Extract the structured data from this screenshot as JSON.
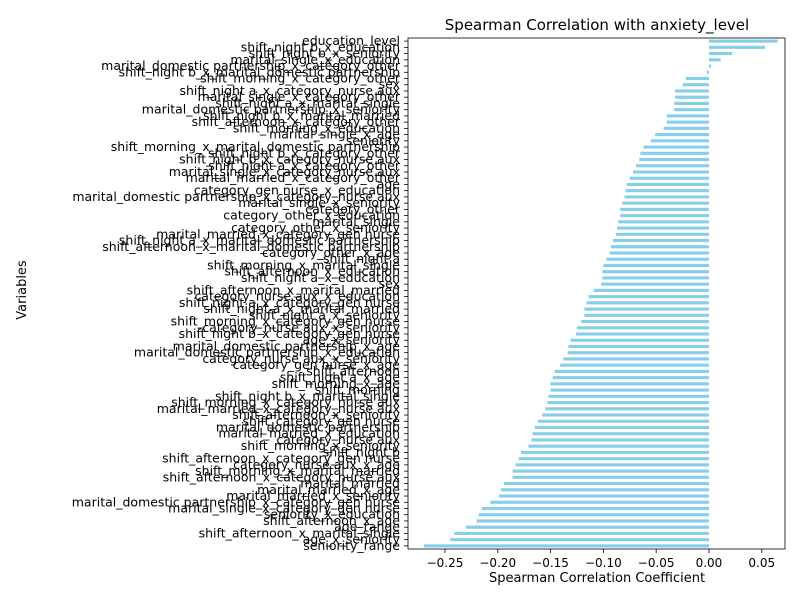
{
  "chart_data": {
    "type": "bar",
    "orientation": "horizontal",
    "title": "Spearman Correlation with anxiety_level",
    "xlabel": "Spearman Correlation Coefficient",
    "ylabel": "Variables",
    "xlim": [
      -0.285,
      0.072
    ],
    "xticks": [
      -0.25,
      -0.2,
      -0.15,
      -0.1,
      -0.05,
      0.0,
      0.05
    ],
    "xtick_labels": [
      "−0.25",
      "−0.20",
      "−0.15",
      "−0.10",
      "−0.05",
      "0.00",
      "0.05"
    ],
    "bar_color": "#87ceeb",
    "grid": false,
    "categories": [
      "education_level",
      "shift_night b_x_education",
      "shift_night b_x_seniority",
      "marital_single_x_education",
      "marital_domestic partnership_x_category_other",
      "shift_night b_x_marital_domestic partnership",
      "shift_morning_x_category_other",
      "sex",
      "shift_night a_x_category_nurse aux",
      "marital_single_x_category_other",
      "shift_night a_x_marital_single",
      "marital_domestic partnership_x_seniority",
      "shift_night b_x_marital_married",
      "shift_afternoon_x_category_other",
      "shift_morning_x_education",
      "marital_single_x_age",
      "seniority",
      "shift_morning_x_marital_domestic partnership",
      "shift_night b_x_category_other",
      "shift_night b_x_category_nurse aux",
      "shift_night a_x_category_other",
      "marital_single_x_category_nurse aux",
      "marital_married_x_category_other",
      "age",
      "category_gen nurse_x_education",
      "marital_domestic partnership_x_category_nurse aux",
      "marital_single_x_seniority",
      "category_other",
      "category_other_x_education",
      "marital_single",
      "category_other_x_seniority",
      "marital_married_x_category_gen nurse",
      "shift_night a_x_marital_domestic partnership",
      "shift_afternoon_x_marital_domestic partnership",
      "category_other_x_age",
      "shift_night a",
      "shift_morning_x_marital_single",
      "shift_afternoon_x_education",
      "shift_night a_x_education",
      "sex",
      "shift_afternoon_x_marital_married",
      "category_nurse aux_x_education",
      "shift_night a_x_category_gen nurse",
      "shift_night a_x_marital_married",
      "shift_night a_x_seniority",
      "shift_morning_x_category_gen nurse",
      "category_nurse aux_x_seniority",
      "shift_night b_x_category_gen nurse",
      "age_x_seniority",
      "marital_domestic partnership_x_age",
      "marital_domestic partnership_x_education",
      "category_nurse aux_x_seniority",
      "category_gen nurse_x_age",
      "shift_afternoon",
      "shift_night a_x_age",
      "shift_morning_x_age",
      "shift_morning",
      "shift_night b_x_marital_single",
      "shift_morning_x_category_nurse aux",
      "marital_married_x_category_nurse aux",
      "shift_afternoon_x_seniority",
      "shift_category_gen nurse",
      "marital_domestic partnership",
      "marital_married_x_education",
      "category_nurse aux",
      "shift_morning_x_seniority",
      "shift_night b",
      "shift_afternoon_x_category_gen nurse",
      "category_nurse aux_x_age",
      "shift_morning_x_marital_married",
      "shift_afternoon_x_category_nurse aux",
      "marital_married",
      "marital_married_x_age",
      "marital_married_x_seniority",
      "marital_domestic partnership_x_category_gen nurse",
      "marital_single_x_category_gen nurse",
      "seniority_x_education",
      "shift_afternoon_x_age",
      "age_range",
      "shift_afternoon_x_marital_single",
      "age_x_seniority",
      "seniority_range"
    ],
    "values": [
      0.065,
      0.053,
      0.022,
      0.011,
      0.002,
      -0.002,
      -0.022,
      -0.025,
      -0.032,
      -0.032,
      -0.033,
      -0.033,
      -0.04,
      -0.04,
      -0.043,
      -0.051,
      -0.055,
      -0.062,
      -0.065,
      -0.066,
      -0.069,
      -0.072,
      -0.075,
      -0.078,
      -0.079,
      -0.08,
      -0.082,
      -0.084,
      -0.084,
      -0.086,
      -0.087,
      -0.088,
      -0.091,
      -0.093,
      -0.094,
      -0.097,
      -0.1,
      -0.101,
      -0.101,
      -0.102,
      -0.109,
      -0.114,
      -0.116,
      -0.118,
      -0.118,
      -0.121,
      -0.125,
      -0.126,
      -0.131,
      -0.133,
      -0.134,
      -0.138,
      -0.141,
      -0.146,
      -0.148,
      -0.15,
      -0.15,
      -0.152,
      -0.153,
      -0.155,
      -0.158,
      -0.162,
      -0.165,
      -0.167,
      -0.168,
      -0.171,
      -0.178,
      -0.18,
      -0.183,
      -0.186,
      -0.186,
      -0.194,
      -0.197,
      -0.199,
      -0.207,
      -0.215,
      -0.218,
      -0.22,
      -0.23,
      -0.241,
      -0.245,
      -0.27
    ]
  }
}
